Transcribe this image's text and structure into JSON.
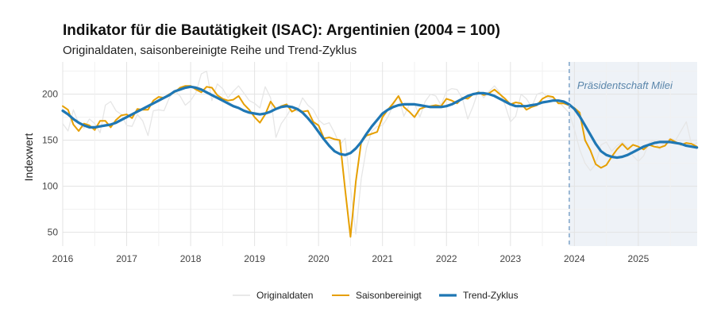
{
  "chart_data": {
    "type": "line",
    "title": "Indikator für die Bautätigkeit (ISAC): Argentinien (2004 = 100)",
    "subtitle": "Originaldaten, saisonbereinigte Reihe und Trend-Zyklus",
    "ylabel": "Indexwert",
    "xlabel": "",
    "xlim": [
      2016.0,
      2025.92
    ],
    "ylim": [
      35,
      235
    ],
    "xticks": [
      {
        "value": 2016,
        "label": "2016"
      },
      {
        "value": 2017,
        "label": "2017"
      },
      {
        "value": 2018,
        "label": "2018"
      },
      {
        "value": 2019,
        "label": "2019"
      },
      {
        "value": 2020,
        "label": "2020"
      },
      {
        "value": 2021,
        "label": "2021"
      },
      {
        "value": 2022,
        "label": "2022"
      },
      {
        "value": 2023,
        "label": "2023"
      },
      {
        "value": 2024,
        "label": "2024"
      },
      {
        "value": 2025,
        "label": "2025"
      }
    ],
    "yticks": [
      {
        "value": 50,
        "label": "50"
      },
      {
        "value": 100,
        "label": "100"
      },
      {
        "value": 150,
        "label": "150"
      },
      {
        "value": 200,
        "label": "200"
      }
    ],
    "shaded_region": {
      "start": 2023.92,
      "end": 2025.92,
      "label": "Präsidentschaft Milei",
      "color": "#eef2f7"
    },
    "vline": {
      "x": 2023.92,
      "color": "#7ea3c9"
    },
    "legend_position": "bottom",
    "series": [
      {
        "name": "Originaldaten",
        "color": "#e6e6e6",
        "width": 1.3,
        "start": 2016.0,
        "step": 0.08333,
        "values": [
          168,
          160,
          183,
          168,
          163,
          173,
          168,
          158,
          188,
          192,
          182,
          178,
          166,
          165,
          178,
          171,
          155,
          182,
          183,
          182,
          196,
          204,
          198,
          188,
          193,
          202,
          222,
          225,
          193,
          211,
          206,
          196,
          203,
          209,
          201,
          193,
          190,
          185,
          208,
          196,
          153,
          168,
          176,
          186,
          181,
          196,
          188,
          183,
          172,
          167,
          169,
          158,
          145,
          152,
          99,
          48,
          108,
          142,
          160,
          165,
          166,
          175,
          188,
          198,
          176,
          188,
          190,
          175,
          192,
          200,
          198,
          188,
          203,
          206,
          205,
          195,
          173,
          187,
          204,
          196,
          203,
          209,
          202,
          188,
          170,
          176,
          200,
          195,
          186,
          200,
          202,
          196,
          195,
          192,
          186,
          180,
          162,
          140,
          125,
          117,
          124,
          145,
          148,
          138,
          144,
          148,
          143,
          133,
          127,
          133,
          147,
          150,
          140,
          148,
          152,
          150,
          160,
          170,
          145,
          147
        ]
      },
      {
        "name": "Saisonbereinigt",
        "color": "#e69f00",
        "width": 2.0,
        "start": 2016.0,
        "step": 0.08333,
        "values": [
          187,
          183,
          167,
          160,
          168,
          166,
          161,
          171,
          171,
          164,
          172,
          177,
          178,
          174,
          184,
          183,
          183,
          193,
          197,
          196,
          200,
          202,
          207,
          209,
          209,
          205,
          202,
          208,
          207,
          199,
          195,
          193,
          194,
          198,
          189,
          183,
          175,
          169,
          178,
          192,
          184,
          187,
          189,
          181,
          184,
          181,
          182,
          170,
          166,
          152,
          153,
          151,
          150,
          96,
          45,
          105,
          148,
          155,
          157,
          159,
          175,
          183,
          190,
          198,
          186,
          181,
          175,
          184,
          186,
          187,
          188,
          187,
          195,
          193,
          190,
          196,
          195,
          200,
          202,
          199,
          201,
          205,
          200,
          195,
          189,
          191,
          190,
          183,
          186,
          188,
          195,
          198,
          197,
          190,
          190,
          188,
          185,
          180,
          150,
          139,
          124,
          120,
          123,
          132,
          140,
          146,
          140,
          145,
          143,
          140,
          145,
          143,
          142,
          144,
          151,
          148,
          145,
          147,
          146,
          143
        ]
      },
      {
        "name": "Trend-Zyklus",
        "color": "#1f77b4",
        "width": 3.2,
        "start": 2016.0,
        "step": 0.08333,
        "values": [
          182,
          178,
          173,
          169,
          166,
          164,
          164,
          165,
          166,
          167,
          169,
          172,
          175,
          178,
          181,
          184,
          187,
          190,
          193,
          196,
          199,
          203,
          205,
          207,
          208,
          207,
          205,
          202,
          199,
          196,
          193,
          190,
          187,
          185,
          182,
          180,
          179,
          178,
          179,
          181,
          184,
          186,
          187,
          186,
          184,
          180,
          174,
          167,
          159,
          151,
          144,
          138,
          135,
          134,
          136,
          141,
          148,
          157,
          165,
          172,
          179,
          183,
          186,
          188,
          189,
          189,
          189,
          188,
          187,
          186,
          186,
          186,
          187,
          189,
          192,
          195,
          198,
          200,
          201,
          201,
          200,
          198,
          195,
          192,
          189,
          187,
          187,
          187,
          188,
          189,
          191,
          192,
          193,
          193,
          192,
          189,
          184,
          176,
          166,
          156,
          146,
          138,
          134,
          132,
          131,
          132,
          134,
          137,
          140,
          143,
          145,
          147,
          148,
          148,
          148,
          147,
          146,
          144,
          143,
          142
        ]
      }
    ]
  }
}
